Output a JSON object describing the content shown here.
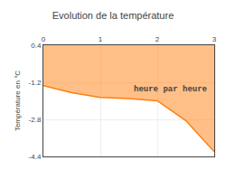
{
  "chart_data": {
    "type": "area",
    "title": "Evolution de la température",
    "ylabel": "Température en °C",
    "x": [
      0,
      0.5,
      1.0,
      1.5,
      2.0,
      2.5,
      3.0
    ],
    "values": [
      -1.35,
      -1.65,
      -1.85,
      -1.9,
      -2.0,
      -2.85,
      -4.2
    ],
    "xlim": [
      0,
      3
    ],
    "ylim": [
      -4.4,
      0.4
    ],
    "xticks": [
      0,
      1,
      2,
      3
    ],
    "yticks": [
      0.4,
      -1.2,
      -2.8,
      -4.4
    ],
    "grid": true,
    "annotations": [
      {
        "text": "heure par heure",
        "x": 1.55,
        "y": -1.5
      }
    ]
  }
}
